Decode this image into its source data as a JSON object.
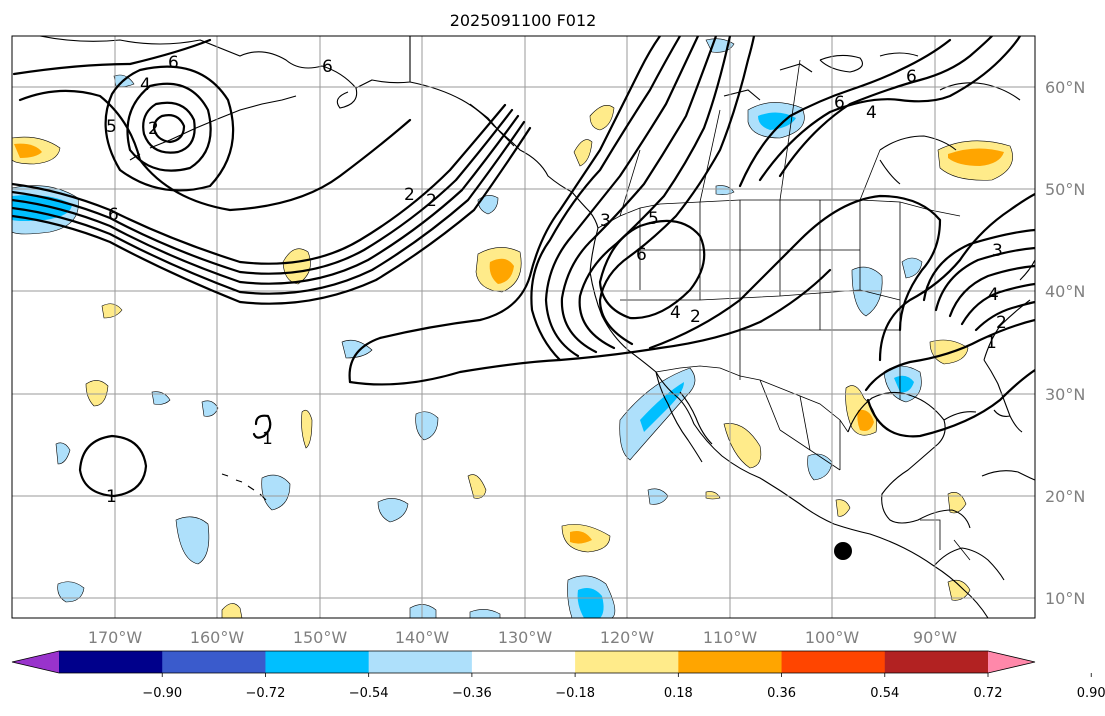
{
  "title": "2025091100 F012",
  "latitude_labels": [
    "60°N",
    "50°N",
    "40°N",
    "30°N",
    "20°N",
    "10°N"
  ],
  "longitude_labels": [
    "170°W",
    "160°W",
    "150°W",
    "140°W",
    "130°W",
    "120°W",
    "110°W",
    "100°W",
    "90°W"
  ],
  "contour_labels": [
    "6",
    "4",
    "2",
    "5",
    "6",
    "2",
    "2",
    "6",
    "5",
    "6",
    "3",
    "6",
    "4",
    "2",
    "6",
    "4",
    "4",
    "3",
    "2",
    "1",
    "1",
    "1"
  ],
  "colorbar": {
    "ticks": [
      "−0.90",
      "−0.72",
      "−0.54",
      "−0.36",
      "−0.18",
      "0.18",
      "0.36",
      "0.54",
      "0.72",
      "0.90"
    ],
    "colors": [
      "#9933cc",
      "#00008b",
      "#3a5bcc",
      "#00bfff",
      "#aee0fb",
      "#ffffff",
      "#ffeb8a",
      "#ffa500",
      "#ff4500",
      "#b22222",
      "#ff88aa"
    ]
  }
}
